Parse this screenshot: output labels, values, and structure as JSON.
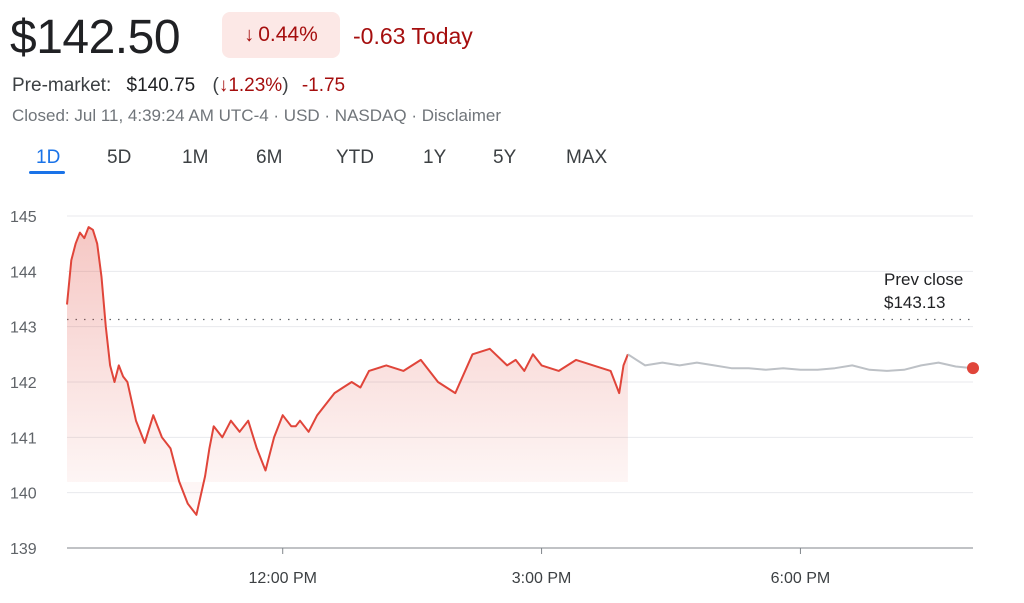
{
  "quote": {
    "price": "$142.50",
    "change_pct": "0.44%",
    "change_abs_today": "-0.63 Today",
    "premarket_label": "Pre-market:",
    "premarket_price": "$140.75",
    "premarket_pct_open": "(",
    "premarket_pct": "1.23%",
    "premarket_pct_close": ")",
    "premarket_change": "-1.75",
    "status_line": "Closed: Jul 11, 4:39:24 AM UTC-4 · USD · NASDAQ · Disclaimer"
  },
  "tabs": [
    "1D",
    "5D",
    "1M",
    "6M",
    "YTD",
    "1Y",
    "5Y",
    "MAX"
  ],
  "active_tab": "1D",
  "colors": {
    "up_down_red": "#a50e0e",
    "line_red": "#e0453a",
    "after_hours_gray": "#bdc1c6",
    "accent_blue": "#1a73e8",
    "badge_bg": "#fce8e6"
  },
  "chart_data": {
    "type": "line",
    "ylim": [
      139,
      145.2
    ],
    "yticks": [
      139,
      140,
      141,
      142,
      143,
      144,
      145
    ],
    "xlim_hours": [
      9.5,
      20.0
    ],
    "xticks": [
      {
        "hour": 12,
        "label": "12:00 PM"
      },
      {
        "hour": 15,
        "label": "3:00 PM"
      },
      {
        "hour": 18,
        "label": "6:00 PM"
      }
    ],
    "reference_line": {
      "label": "Prev close",
      "value_label": "$143.13",
      "value": 143.13
    },
    "series": [
      {
        "segment": "regular_session",
        "x": [
          9.5,
          9.55,
          9.6,
          9.65,
          9.7,
          9.75,
          9.8,
          9.85,
          9.9,
          9.95,
          10.0,
          10.05,
          10.1,
          10.15,
          10.2,
          10.3,
          10.4,
          10.5,
          10.6,
          10.7,
          10.8,
          10.9,
          11.0,
          11.1,
          11.15,
          11.2,
          11.3,
          11.4,
          11.5,
          11.6,
          11.7,
          11.8,
          11.9,
          12.0,
          12.1,
          12.15,
          12.2,
          12.3,
          12.4,
          12.5,
          12.6,
          12.7,
          12.8,
          12.9,
          13.0,
          13.2,
          13.4,
          13.6,
          13.8,
          14.0,
          14.2,
          14.4,
          14.6,
          14.7,
          14.8,
          14.9,
          15.0,
          15.2,
          15.4,
          15.6,
          15.8,
          15.9,
          15.95,
          16.0
        ],
        "y": [
          143.4,
          144.2,
          144.5,
          144.7,
          144.6,
          144.8,
          144.75,
          144.5,
          143.9,
          143.0,
          142.3,
          142.0,
          142.3,
          142.1,
          142.0,
          141.3,
          140.9,
          141.4,
          141.0,
          140.8,
          140.2,
          139.8,
          139.6,
          140.3,
          140.8,
          141.2,
          141.0,
          141.3,
          141.1,
          141.3,
          140.8,
          140.4,
          141.0,
          141.4,
          141.2,
          141.2,
          141.3,
          141.1,
          141.4,
          141.6,
          141.8,
          141.9,
          142.0,
          141.9,
          142.2,
          142.3,
          142.2,
          142.4,
          142.0,
          141.8,
          142.5,
          142.6,
          142.3,
          142.4,
          142.2,
          142.5,
          142.3,
          142.2,
          142.4,
          142.3,
          142.2,
          141.8,
          142.3,
          142.5
        ]
      },
      {
        "segment": "after_hours",
        "x": [
          16.0,
          16.2,
          16.4,
          16.6,
          16.8,
          17.0,
          17.2,
          17.4,
          17.6,
          17.8,
          18.0,
          18.2,
          18.4,
          18.6,
          18.8,
          19.0,
          19.2,
          19.4,
          19.6,
          19.8,
          20.0
        ],
        "y": [
          142.5,
          142.3,
          142.35,
          142.3,
          142.35,
          142.3,
          142.25,
          142.25,
          142.22,
          142.25,
          142.22,
          142.22,
          142.25,
          142.3,
          142.22,
          142.2,
          142.22,
          142.3,
          142.35,
          142.28,
          142.25
        ]
      }
    ],
    "last_point": {
      "x": 20.0,
      "y": 142.25
    }
  }
}
